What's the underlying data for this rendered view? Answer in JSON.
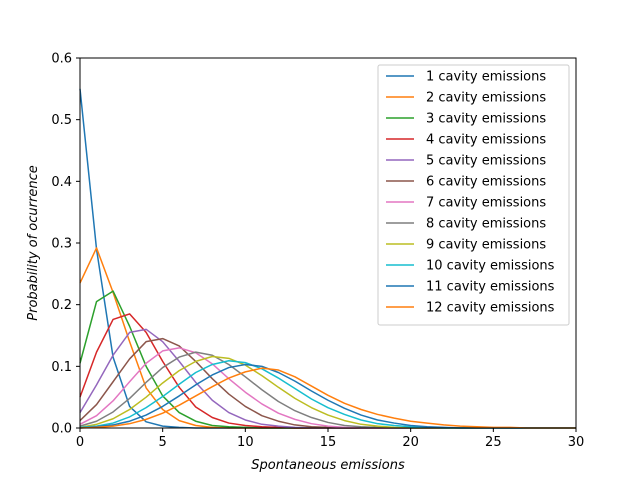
{
  "chart_data": {
    "type": "line",
    "title": "",
    "xlabel": "Spontaneous emissions",
    "ylabel": "Probability of ocurrence",
    "xlim": [
      0,
      30
    ],
    "ylim": [
      0,
      0.6
    ],
    "xticks": [
      0,
      5,
      10,
      15,
      20,
      25,
      30
    ],
    "yticks": [
      0.0,
      0.1,
      0.2,
      0.3,
      0.4,
      0.5,
      0.6
    ],
    "grid": false,
    "legend_position": "top-right",
    "x": [
      0,
      1,
      2,
      3,
      4,
      5,
      6,
      7,
      8,
      9,
      10,
      11,
      12,
      13,
      14,
      15,
      16,
      17,
      18,
      19,
      20,
      21,
      22,
      23,
      24,
      25,
      26,
      27,
      28,
      29,
      30
    ],
    "series": [
      {
        "name": "1 cavity emissions",
        "color": "#1f77b4",
        "values": [
          0.55,
          0.29,
          0.115,
          0.035,
          0.01,
          0.003,
          0.001,
          0,
          0,
          0,
          0,
          0,
          0,
          0,
          0,
          0,
          0,
          0,
          0,
          0,
          0,
          0,
          0,
          0,
          0,
          0,
          0,
          0,
          0,
          0,
          0
        ]
      },
      {
        "name": "2 cavity emissions",
        "color": "#ff7f0e",
        "values": [
          0.235,
          0.292,
          0.22,
          0.14,
          0.065,
          0.03,
          0.012,
          0.004,
          0.001,
          0,
          0,
          0,
          0,
          0,
          0,
          0,
          0,
          0,
          0,
          0,
          0,
          0,
          0,
          0,
          0,
          0,
          0,
          0,
          0,
          0,
          0
        ]
      },
      {
        "name": "3 cavity emissions",
        "color": "#2ca02c",
        "values": [
          0.105,
          0.205,
          0.222,
          0.165,
          0.1,
          0.052,
          0.025,
          0.011,
          0.004,
          0.002,
          0.001,
          0,
          0,
          0,
          0,
          0,
          0,
          0,
          0,
          0,
          0,
          0,
          0,
          0,
          0,
          0,
          0,
          0,
          0,
          0,
          0
        ]
      },
      {
        "name": "4 cavity emissions",
        "color": "#d62728",
        "values": [
          0.05,
          0.123,
          0.176,
          0.185,
          0.155,
          0.108,
          0.066,
          0.034,
          0.017,
          0.008,
          0.004,
          0.002,
          0.001,
          0,
          0,
          0,
          0,
          0,
          0,
          0,
          0,
          0,
          0,
          0,
          0,
          0,
          0,
          0,
          0,
          0,
          0
        ]
      },
      {
        "name": "5 cavity emissions",
        "color": "#9467bd",
        "values": [
          0.025,
          0.07,
          0.118,
          0.155,
          0.16,
          0.14,
          0.108,
          0.074,
          0.045,
          0.025,
          0.013,
          0.006,
          0.003,
          0.001,
          0,
          0,
          0,
          0,
          0,
          0,
          0,
          0,
          0,
          0,
          0,
          0,
          0,
          0,
          0,
          0,
          0
        ]
      },
      {
        "name": "6 cavity emissions",
        "color": "#8c564b",
        "values": [
          0.012,
          0.038,
          0.075,
          0.112,
          0.14,
          0.145,
          0.133,
          0.108,
          0.08,
          0.055,
          0.035,
          0.02,
          0.011,
          0.005,
          0.002,
          0.001,
          0,
          0,
          0,
          0,
          0,
          0,
          0,
          0,
          0,
          0,
          0,
          0,
          0,
          0,
          0
        ]
      },
      {
        "name": "7 cavity emissions",
        "color": "#e377c2",
        "values": [
          0.006,
          0.02,
          0.044,
          0.075,
          0.105,
          0.125,
          0.13,
          0.122,
          0.104,
          0.08,
          0.058,
          0.039,
          0.024,
          0.014,
          0.007,
          0.003,
          0.001,
          0,
          0,
          0,
          0,
          0,
          0,
          0,
          0,
          0,
          0,
          0,
          0,
          0,
          0
        ]
      },
      {
        "name": "8 cavity emissions",
        "color": "#7f7f7f",
        "values": [
          0.003,
          0.011,
          0.026,
          0.048,
          0.074,
          0.098,
          0.115,
          0.123,
          0.118,
          0.103,
          0.083,
          0.062,
          0.043,
          0.028,
          0.017,
          0.009,
          0.004,
          0.002,
          0.001,
          0,
          0,
          0,
          0,
          0,
          0,
          0,
          0,
          0,
          0,
          0,
          0
        ]
      },
      {
        "name": "9 cavity emissions",
        "color": "#bcbd22",
        "values": [
          0.001,
          0.006,
          0.015,
          0.03,
          0.05,
          0.073,
          0.093,
          0.108,
          0.116,
          0.113,
          0.102,
          0.085,
          0.066,
          0.048,
          0.033,
          0.021,
          0.012,
          0.006,
          0.003,
          0.001,
          0,
          0,
          0,
          0,
          0,
          0,
          0,
          0,
          0,
          0,
          0
        ]
      },
      {
        "name": "10 cavity emissions",
        "color": "#17becf",
        "values": [
          0.001,
          0.003,
          0.008,
          0.018,
          0.033,
          0.051,
          0.071,
          0.09,
          0.103,
          0.109,
          0.106,
          0.096,
          0.081,
          0.064,
          0.047,
          0.033,
          0.022,
          0.013,
          0.007,
          0.004,
          0.002,
          0.001,
          0,
          0,
          0,
          0,
          0,
          0,
          0,
          0,
          0
        ]
      },
      {
        "name": "11 cavity emissions",
        "color": "#1f77b4",
        "values": [
          0,
          0.002,
          0.005,
          0.011,
          0.021,
          0.035,
          0.052,
          0.07,
          0.086,
          0.098,
          0.103,
          0.1,
          0.09,
          0.076,
          0.06,
          0.045,
          0.032,
          0.021,
          0.013,
          0.008,
          0.004,
          0.002,
          0.001,
          0,
          0,
          0,
          0,
          0,
          0,
          0,
          0
        ]
      },
      {
        "name": "12 cavity emissions",
        "color": "#ff7f0e",
        "values": [
          0,
          0.001,
          0.003,
          0.007,
          0.014,
          0.024,
          0.037,
          0.052,
          0.067,
          0.081,
          0.091,
          0.097,
          0.094,
          0.083,
          0.068,
          0.053,
          0.04,
          0.03,
          0.022,
          0.016,
          0.011,
          0.008,
          0.005,
          0.003,
          0.002,
          0.001,
          0.001,
          0,
          0,
          0,
          0
        ]
      }
    ]
  }
}
